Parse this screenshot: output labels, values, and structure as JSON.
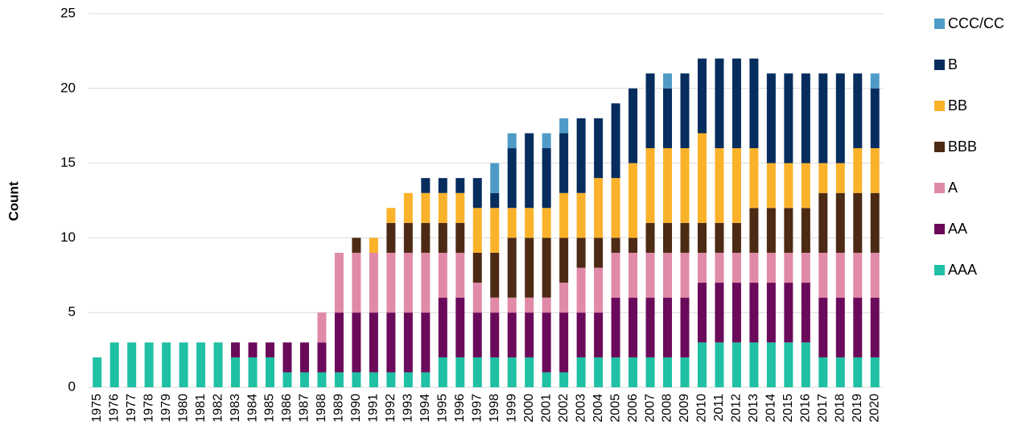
{
  "chart_data": {
    "type": "stacked_bar",
    "y_label": "Count",
    "categories": [
      "1975",
      "1976",
      "1977",
      "1978",
      "1979",
      "1980",
      "1981",
      "1982",
      "1983",
      "1984",
      "1985",
      "1986",
      "1987",
      "1988",
      "1989",
      "1990",
      "1991",
      "1992",
      "1993",
      "1994",
      "1995",
      "1996",
      "1997",
      "1998",
      "1999",
      "2000",
      "2001",
      "2002",
      "2003",
      "2004",
      "2005",
      "2006",
      "2007",
      "2008",
      "2009",
      "2010",
      "2011",
      "2012",
      "2013",
      "2014",
      "2015",
      "2016",
      "2017",
      "2018",
      "2019",
      "2020"
    ],
    "series": [
      {
        "name": "AAA",
        "color": "#1fc0a4",
        "values": [
          2,
          3,
          3,
          3,
          3,
          3,
          3,
          3,
          2,
          2,
          2,
          1,
          1,
          1,
          1,
          1,
          1,
          1,
          1,
          1,
          2,
          2,
          2,
          2,
          2,
          2,
          1,
          1,
          2,
          2,
          2,
          2,
          2,
          2,
          2,
          3,
          3,
          3,
          3,
          3,
          3,
          3,
          2,
          2,
          2,
          2
        ]
      },
      {
        "name": "AA",
        "color": "#6b0a5a",
        "values": [
          0,
          0,
          0,
          0,
          0,
          0,
          0,
          0,
          1,
          1,
          1,
          2,
          2,
          2,
          4,
          4,
          4,
          4,
          4,
          4,
          4,
          4,
          3,
          3,
          3,
          3,
          4,
          4,
          3,
          3,
          4,
          4,
          4,
          4,
          4,
          4,
          4,
          4,
          4,
          4,
          4,
          4,
          4,
          4,
          4,
          4
        ]
      },
      {
        "name": "A",
        "color": "#e08aa8",
        "values": [
          0,
          0,
          0,
          0,
          0,
          0,
          0,
          0,
          0,
          0,
          0,
          0,
          0,
          2,
          4,
          4,
          4,
          4,
          4,
          4,
          3,
          3,
          2,
          1,
          1,
          1,
          1,
          2,
          3,
          3,
          3,
          3,
          3,
          3,
          3,
          2,
          2,
          2,
          2,
          2,
          2,
          2,
          3,
          3,
          3,
          3
        ]
      },
      {
        "name": "BBB",
        "color": "#4d2a14",
        "values": [
          0,
          0,
          0,
          0,
          0,
          0,
          0,
          0,
          0,
          0,
          0,
          0,
          0,
          0,
          0,
          1,
          0,
          2,
          2,
          2,
          2,
          2,
          2,
          3,
          4,
          4,
          4,
          3,
          2,
          2,
          1,
          1,
          2,
          2,
          2,
          2,
          2,
          2,
          3,
          3,
          3,
          3,
          4,
          4,
          4,
          4
        ]
      },
      {
        "name": "BB",
        "color": "#fbb22b",
        "values": [
          0,
          0,
          0,
          0,
          0,
          0,
          0,
          0,
          0,
          0,
          0,
          0,
          0,
          0,
          0,
          0,
          1,
          1,
          2,
          2,
          2,
          2,
          3,
          3,
          2,
          2,
          2,
          3,
          3,
          4,
          4,
          5,
          5,
          5,
          5,
          6,
          5,
          5,
          4,
          3,
          3,
          3,
          2,
          2,
          3,
          3
        ]
      },
      {
        "name": "B",
        "color": "#062d5e",
        "values": [
          0,
          0,
          0,
          0,
          0,
          0,
          0,
          0,
          0,
          0,
          0,
          0,
          0,
          0,
          0,
          0,
          0,
          0,
          0,
          1,
          1,
          1,
          2,
          1,
          4,
          5,
          4,
          4,
          5,
          4,
          5,
          5,
          5,
          4,
          5,
          5,
          6,
          6,
          6,
          6,
          6,
          6,
          6,
          6,
          5,
          4
        ]
      },
      {
        "name": "CCC/CC",
        "color": "#4f9bc7",
        "values": [
          0,
          0,
          0,
          0,
          0,
          0,
          0,
          0,
          0,
          0,
          0,
          0,
          0,
          0,
          0,
          0,
          0,
          0,
          0,
          0,
          0,
          0,
          0,
          2,
          1,
          0,
          1,
          1,
          0,
          0,
          0,
          0,
          0,
          1,
          0,
          0,
          0,
          0,
          0,
          0,
          0,
          0,
          0,
          0,
          0,
          1
        ]
      }
    ],
    "ylim": [
      0,
      25
    ],
    "yticks": [
      0,
      5,
      10,
      15,
      20,
      25
    ],
    "grid": true,
    "legend": "right"
  }
}
